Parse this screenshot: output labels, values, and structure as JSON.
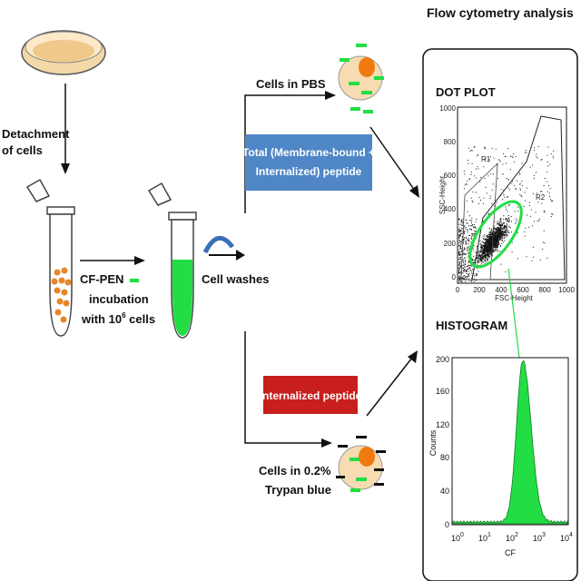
{
  "labels": {
    "flow_title": "Flow cytometry analysis",
    "detachment_1": "Detachment",
    "detachment_2": "of cells",
    "cfpen_1": "CF-PEN",
    "cfpen_2": "incubation",
    "cfpen_3_pre": "with 10",
    "cfpen_3_sup": "6",
    "cfpen_3_post": " cells",
    "cell_washes": "Cell washes",
    "cells_pbs": "Cells in PBS",
    "total_1": "Total (Membrane-bound +",
    "total_2": "Internalized) peptide",
    "internalized": "Internalized peptide",
    "trypan_1": "Cells in 0.2%",
    "trypan_2": "Trypan blue",
    "dot_plot": "DOT PLOT",
    "histogram": "HISTOGRAM"
  },
  "dot_plot": {
    "x_label": "FSC-Height",
    "y_label": "SSC-Height",
    "x_ticks": [
      "0",
      "200",
      "400",
      "600",
      "800",
      "1000"
    ],
    "y_ticks": [
      "0",
      "200",
      "400",
      "600",
      "800",
      "1000"
    ],
    "gate_r1": "R1",
    "gate_r2": "R2"
  },
  "histogram_plot": {
    "x_label": "CF",
    "y_label": "Counts",
    "x_ticks": [
      {
        "base": "10",
        "exp": "0"
      },
      {
        "base": "10",
        "exp": "1"
      },
      {
        "base": "10",
        "exp": "2"
      },
      {
        "base": "10",
        "exp": "3"
      },
      {
        "base": "10",
        "exp": "4"
      }
    ],
    "y_ticks": [
      "0",
      "40",
      "80",
      "120",
      "160",
      "200"
    ]
  },
  "colors": {
    "green": "#22dd44",
    "box_blue": "#4f86c6",
    "box_red": "#c81e1e",
    "cell_fill": "#f6dcb0",
    "nucleus": "#f07a10",
    "dish_fill": "#f3d8a8",
    "tube_orange_dot": "#e8862a"
  }
}
